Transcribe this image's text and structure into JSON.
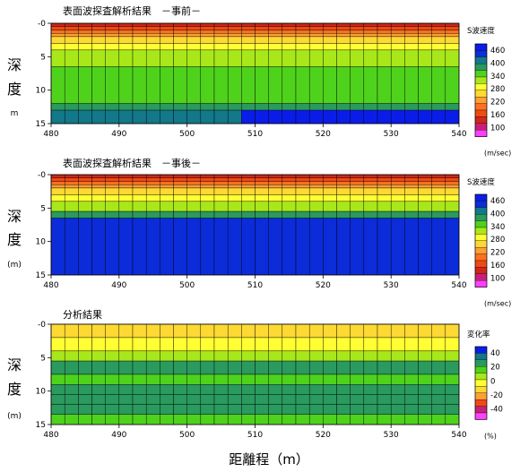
{
  "chart_data": [
    {
      "type": "heatmap",
      "title": "表面波探査解析結果　－事前－",
      "y_label_chars": [
        "深",
        "度",
        "m"
      ],
      "x_ticks": [
        "480",
        "490",
        "500",
        "510",
        "520",
        "530",
        "540"
      ],
      "y_ticks": [
        "-0",
        "5",
        "10",
        "15"
      ],
      "xlim": [
        480,
        540
      ],
      "ylim": [
        0,
        15
      ],
      "cell_columns": 30,
      "legend": {
        "title": "S波速度",
        "ticks": [
          "460",
          "400",
          "340",
          "280",
          "220",
          "160",
          "100"
        ],
        "unit": "(m/sec)",
        "colors": [
          "#0a1de8",
          "#0b2cd8",
          "#12788a",
          "#2a9a5e",
          "#4fd21c",
          "#a8e81a",
          "#ffff33",
          "#ffd933",
          "#ffa033",
          "#ff7020",
          "#f04a14",
          "#d02818",
          "#c8207a",
          "#ff40ff"
        ]
      },
      "rows": [
        {
          "depth": [
            0.0,
            0.5
          ],
          "level": [
            11,
            11,
            11,
            11,
            11,
            11,
            11,
            11,
            11,
            11,
            11,
            11,
            11,
            11,
            11,
            11,
            11,
            11,
            11,
            11,
            11,
            11,
            11,
            11,
            11,
            11,
            11,
            11,
            11,
            11
          ]
        },
        {
          "depth": [
            0.5,
            1.0
          ],
          "level": [
            10,
            10,
            10,
            10,
            10,
            10,
            10,
            10,
            10,
            10,
            10,
            10,
            10,
            10,
            10,
            10,
            10,
            10,
            10,
            10,
            10,
            10,
            10,
            10,
            10,
            10,
            10,
            10,
            10,
            10
          ]
        },
        {
          "depth": [
            1.0,
            1.5
          ],
          "level": [
            9,
            9,
            9,
            9,
            9,
            9,
            9,
            9,
            9,
            9,
            9,
            9,
            9,
            9,
            9,
            9,
            9,
            9,
            9,
            9,
            9,
            9,
            9,
            9,
            9,
            9,
            9,
            9,
            9,
            9
          ]
        },
        {
          "depth": [
            1.5,
            2.0
          ],
          "level": [
            8,
            8,
            8,
            8,
            8,
            8,
            8,
            8,
            8,
            8,
            8,
            8,
            8,
            8,
            8,
            8,
            8,
            8,
            8,
            8,
            8,
            8,
            8,
            8,
            8,
            8,
            8,
            8,
            8,
            8
          ]
        },
        {
          "depth": [
            2.0,
            3.0
          ],
          "level": [
            7,
            7,
            7,
            7,
            7,
            7,
            7,
            7,
            7,
            7,
            7,
            7,
            7,
            7,
            7,
            7,
            7,
            7,
            7,
            7,
            7,
            7,
            7,
            7,
            7,
            7,
            7,
            7,
            7,
            7
          ]
        },
        {
          "depth": [
            3.0,
            4.0
          ],
          "level": [
            6,
            6,
            6,
            6,
            6,
            6,
            6,
            6,
            6,
            6,
            6,
            6,
            6,
            6,
            6,
            6,
            6,
            6,
            6,
            6,
            6,
            6,
            6,
            6,
            6,
            6,
            6,
            6,
            6,
            6
          ]
        },
        {
          "depth": [
            4.0,
            6.5
          ],
          "level": [
            5,
            5,
            5,
            5,
            5,
            5,
            5,
            5,
            5,
            5,
            5,
            5,
            5,
            5,
            5,
            5,
            5,
            5,
            5,
            5,
            5,
            5,
            5,
            5,
            5,
            5,
            5,
            5,
            5,
            5
          ]
        },
        {
          "depth": [
            6.5,
            12.0
          ],
          "level": [
            4,
            4,
            4,
            4,
            4,
            4,
            4,
            4,
            4,
            4,
            4,
            4,
            4,
            4,
            4,
            4,
            4,
            4,
            4,
            4,
            4,
            4,
            4,
            4,
            4,
            4,
            4,
            4,
            4,
            4
          ]
        },
        {
          "depth": [
            12.0,
            13.0
          ],
          "level": [
            3,
            3,
            3,
            3,
            3,
            3,
            3,
            3,
            3,
            3,
            3,
            3,
            3,
            3,
            3,
            3,
            3,
            3,
            3,
            3,
            3,
            3,
            3,
            3,
            3,
            3,
            3,
            3,
            3,
            3
          ]
        },
        {
          "depth": [
            13.0,
            15.0
          ],
          "level": [
            2,
            2,
            2,
            2,
            2,
            2,
            2,
            2,
            2,
            2,
            2,
            2,
            2,
            2,
            0,
            0,
            0,
            0,
            0,
            0,
            0,
            0,
            0,
            0,
            0,
            0,
            0,
            0,
            0,
            0
          ]
        }
      ]
    },
    {
      "type": "heatmap",
      "title": "表面波探査解析結果　－事後－",
      "y_label_chars": [
        "深",
        "度",
        "(m)"
      ],
      "x_ticks": [
        "480",
        "490",
        "500",
        "510",
        "520",
        "530",
        "540"
      ],
      "y_ticks": [
        "-0",
        "5",
        "10",
        "15"
      ],
      "xlim": [
        480,
        540
      ],
      "ylim": [
        0,
        15
      ],
      "cell_columns": 30,
      "legend": {
        "title": "S波速度",
        "ticks": [
          "460",
          "400",
          "340",
          "280",
          "220",
          "160",
          "100"
        ],
        "unit": "(m/sec)",
        "colors": [
          "#0a1de8",
          "#0b2cd8",
          "#12788a",
          "#2a9a5e",
          "#4fd21c",
          "#a8e81a",
          "#ffff33",
          "#ffd933",
          "#ffa033",
          "#ff7020",
          "#f04a14",
          "#d02818",
          "#c8207a",
          "#ff40ff"
        ]
      },
      "rows": [
        {
          "depth": [
            0.0,
            0.5
          ],
          "level": [
            11,
            11,
            11,
            11,
            11,
            11,
            11,
            11,
            11,
            11,
            11,
            11,
            11,
            11,
            11,
            11,
            11,
            11,
            11,
            11,
            11,
            11,
            11,
            11,
            11,
            11,
            11,
            11,
            11,
            11
          ]
        },
        {
          "depth": [
            0.5,
            1.0
          ],
          "level": [
            10,
            10,
            10,
            10,
            10,
            10,
            10,
            10,
            10,
            10,
            10,
            10,
            10,
            10,
            10,
            10,
            10,
            10,
            10,
            10,
            10,
            10,
            10,
            10,
            10,
            10,
            10,
            10,
            10,
            10
          ]
        },
        {
          "depth": [
            1.0,
            1.5
          ],
          "level": [
            9,
            9,
            9,
            9,
            9,
            9,
            9,
            9,
            9,
            9,
            9,
            9,
            9,
            9,
            9,
            9,
            9,
            9,
            9,
            9,
            9,
            9,
            9,
            9,
            9,
            9,
            9,
            9,
            9,
            9
          ]
        },
        {
          "depth": [
            1.5,
            2.0
          ],
          "level": [
            8,
            8,
            8,
            8,
            8,
            8,
            8,
            8,
            8,
            8,
            8,
            8,
            8,
            8,
            8,
            8,
            8,
            8,
            8,
            8,
            8,
            8,
            8,
            8,
            8,
            8,
            8,
            8,
            8,
            8
          ]
        },
        {
          "depth": [
            2.0,
            3.0
          ],
          "level": [
            7,
            7,
            7,
            7,
            7,
            7,
            7,
            7,
            7,
            7,
            7,
            7,
            7,
            7,
            7,
            7,
            7,
            7,
            7,
            7,
            7,
            7,
            7,
            7,
            7,
            7,
            7,
            7,
            7,
            7
          ]
        },
        {
          "depth": [
            3.0,
            4.0
          ],
          "level": [
            6,
            6,
            6,
            6,
            6,
            6,
            6,
            6,
            6,
            6,
            6,
            6,
            6,
            6,
            6,
            6,
            6,
            6,
            6,
            6,
            6,
            6,
            6,
            6,
            6,
            6,
            6,
            6,
            6,
            6
          ]
        },
        {
          "depth": [
            4.0,
            5.5
          ],
          "level": [
            5,
            5,
            5,
            5,
            5,
            5,
            5,
            5,
            5,
            5,
            5,
            5,
            5,
            5,
            5,
            5,
            5,
            5,
            5,
            5,
            5,
            5,
            5,
            5,
            5,
            5,
            5,
            5,
            5,
            5
          ]
        },
        {
          "depth": [
            5.5,
            6.5
          ],
          "level": [
            3,
            3,
            3,
            3,
            3,
            3,
            3,
            3,
            3,
            3,
            3,
            3,
            3,
            3,
            3,
            3,
            3,
            3,
            3,
            3,
            3,
            3,
            3,
            3,
            3,
            3,
            3,
            3,
            3,
            3
          ]
        },
        {
          "depth": [
            6.5,
            15.0
          ],
          "level": [
            1,
            1,
            1,
            1,
            1,
            1,
            1,
            1,
            1,
            1,
            1,
            1,
            1,
            1,
            1,
            1,
            1,
            1,
            1,
            1,
            1,
            1,
            1,
            1,
            1,
            1,
            1,
            1,
            1,
            1
          ]
        }
      ]
    },
    {
      "type": "heatmap",
      "title": "分析結果",
      "y_label_chars": [
        "深",
        "度",
        "(m)"
      ],
      "x_ticks": [
        "480",
        "490",
        "500",
        "510",
        "520",
        "530",
        "540"
      ],
      "y_ticks": [
        "-0",
        "5",
        "10",
        "15"
      ],
      "xlim": [
        480,
        540
      ],
      "ylim": [
        0,
        15
      ],
      "cell_columns": 30,
      "legend": {
        "title": "変化率",
        "ticks": [
          "40",
          "20",
          "0",
          "-20",
          "-40"
        ],
        "unit": "(%)",
        "colors": [
          "#0a1de8",
          "#12788a",
          "#2a9a5e",
          "#4fd21c",
          "#a8e81a",
          "#ffff33",
          "#ffd933",
          "#ffa033",
          "#f04a14",
          "#c8207a",
          "#ff40ff"
        ]
      },
      "rows": [
        {
          "depth": [
            0.0,
            2.0
          ],
          "level": [
            6,
            6,
            6,
            6,
            6,
            6,
            6,
            6,
            6,
            6,
            6,
            6,
            6,
            6,
            6,
            6,
            6,
            6,
            6,
            6,
            6,
            6,
            6,
            6,
            6,
            6,
            6,
            6,
            6,
            6
          ]
        },
        {
          "depth": [
            2.0,
            4.0
          ],
          "level": [
            5,
            5,
            5,
            5,
            5,
            5,
            5,
            5,
            5,
            5,
            5,
            5,
            5,
            5,
            5,
            5,
            5,
            5,
            5,
            5,
            5,
            5,
            5,
            5,
            5,
            5,
            5,
            5,
            5,
            5
          ]
        },
        {
          "depth": [
            4.0,
            5.5
          ],
          "level": [
            4,
            4,
            4,
            4,
            4,
            4,
            4,
            4,
            4,
            4,
            4,
            4,
            4,
            4,
            4,
            4,
            4,
            4,
            4,
            4,
            4,
            4,
            4,
            4,
            4,
            4,
            4,
            4,
            4,
            4
          ]
        },
        {
          "depth": [
            5.5,
            7.5
          ],
          "level": [
            2,
            2,
            2,
            2,
            2,
            2,
            2,
            2,
            2,
            2,
            2,
            2,
            2,
            2,
            2,
            2,
            2,
            2,
            2,
            2,
            2,
            2,
            2,
            2,
            2,
            2,
            2,
            2,
            2,
            2
          ]
        },
        {
          "depth": [
            7.5,
            9.0
          ],
          "level": [
            3,
            3,
            3,
            3,
            3,
            3,
            3,
            3,
            3,
            3,
            3,
            3,
            3,
            3,
            3,
            3,
            3,
            3,
            3,
            3,
            3,
            3,
            3,
            3,
            3,
            3,
            3,
            3,
            3,
            3
          ]
        },
        {
          "depth": [
            9.0,
            10.5
          ],
          "level": [
            2,
            2,
            2,
            2,
            2,
            2,
            2,
            2,
            2,
            2,
            2,
            2,
            2,
            2,
            2,
            2,
            2,
            2,
            2,
            2,
            2,
            2,
            2,
            2,
            2,
            2,
            2,
            2,
            2,
            2
          ]
        },
        {
          "depth": [
            10.5,
            12.0
          ],
          "level": [
            2,
            2,
            2,
            2,
            2,
            2,
            2,
            2,
            2,
            2,
            2,
            2,
            2,
            2,
            2,
            2,
            2,
            2,
            2,
            2,
            2,
            2,
            2,
            2,
            2,
            2,
            2,
            2,
            2,
            2
          ]
        },
        {
          "depth": [
            12.0,
            13.5
          ],
          "level": [
            2,
            2,
            2,
            2,
            2,
            2,
            2,
            2,
            2,
            2,
            2,
            2,
            2,
            2,
            2,
            2,
            2,
            2,
            2,
            2,
            2,
            2,
            2,
            2,
            2,
            2,
            2,
            2,
            2,
            2
          ]
        },
        {
          "depth": [
            13.5,
            15.0
          ],
          "level": [
            3,
            3,
            3,
            3,
            3,
            3,
            3,
            3,
            3,
            3,
            3,
            3,
            3,
            3,
            3,
            3,
            3,
            3,
            3,
            3,
            3,
            3,
            3,
            3,
            3,
            3,
            3,
            3,
            3,
            3
          ]
        }
      ]
    }
  ],
  "footer": {
    "x_label": "距離程（m）"
  }
}
